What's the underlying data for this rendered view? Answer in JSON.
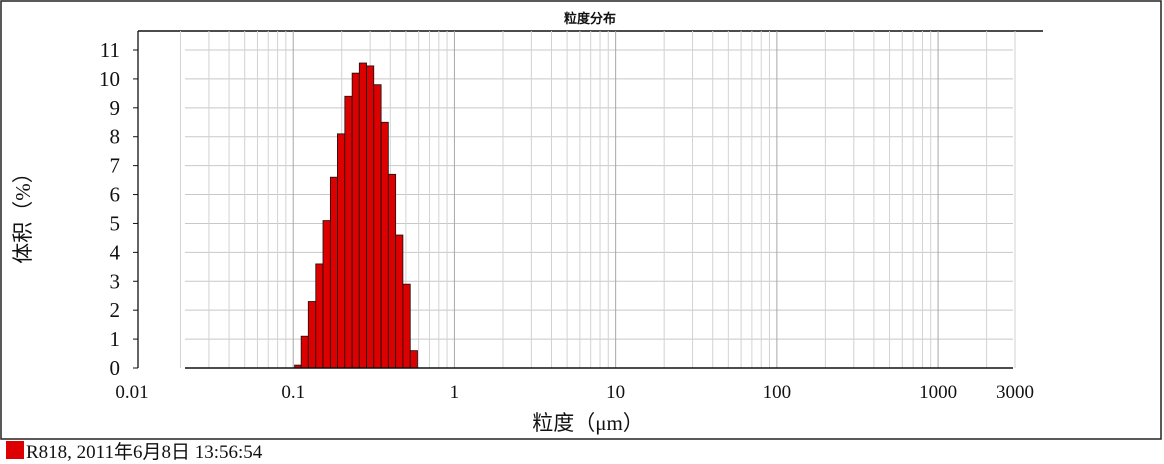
{
  "chart_data": {
    "type": "bar",
    "title": "粒度分布",
    "xlabel": "粒度（μm）",
    "ylabel": "体积（%）",
    "x_scale": "log",
    "xlim": [
      0.01,
      3000
    ],
    "ylim": [
      0,
      11
    ],
    "x_tick_labels": [
      "0.01",
      "0.1",
      "1",
      "10",
      "100",
      "1000",
      "3000"
    ],
    "y_tick_labels": [
      "0",
      "1",
      "2",
      "3",
      "4",
      "5",
      "6",
      "7",
      "8",
      "9",
      "10",
      "11"
    ],
    "grid": true,
    "bar_color": "#dd0000",
    "series": [
      {
        "name": "R818, 2011年6月8日 13:56:54",
        "bins": [
          {
            "from": 0.102,
            "to": 0.112,
            "value": 0.1
          },
          {
            "from": 0.112,
            "to": 0.124,
            "value": 1.1
          },
          {
            "from": 0.124,
            "to": 0.138,
            "value": 2.3
          },
          {
            "from": 0.138,
            "to": 0.153,
            "value": 3.6
          },
          {
            "from": 0.153,
            "to": 0.17,
            "value": 5.1
          },
          {
            "from": 0.17,
            "to": 0.188,
            "value": 6.6
          },
          {
            "from": 0.188,
            "to": 0.209,
            "value": 8.1
          },
          {
            "from": 0.209,
            "to": 0.232,
            "value": 9.4
          },
          {
            "from": 0.232,
            "to": 0.257,
            "value": 10.2
          },
          {
            "from": 0.257,
            "to": 0.285,
            "value": 10.55
          },
          {
            "from": 0.285,
            "to": 0.316,
            "value": 10.45
          },
          {
            "from": 0.316,
            "to": 0.351,
            "value": 9.8
          },
          {
            "from": 0.351,
            "to": 0.389,
            "value": 8.5
          },
          {
            "from": 0.389,
            "to": 0.432,
            "value": 6.7
          },
          {
            "from": 0.432,
            "to": 0.479,
            "value": 4.6
          },
          {
            "from": 0.479,
            "to": 0.532,
            "value": 2.9
          },
          {
            "from": 0.532,
            "to": 0.59,
            "value": 0.6
          }
        ]
      }
    ]
  },
  "legend": {
    "color": "#dd0000",
    "label": "R818, 2011年6月8日 13:56:54"
  }
}
